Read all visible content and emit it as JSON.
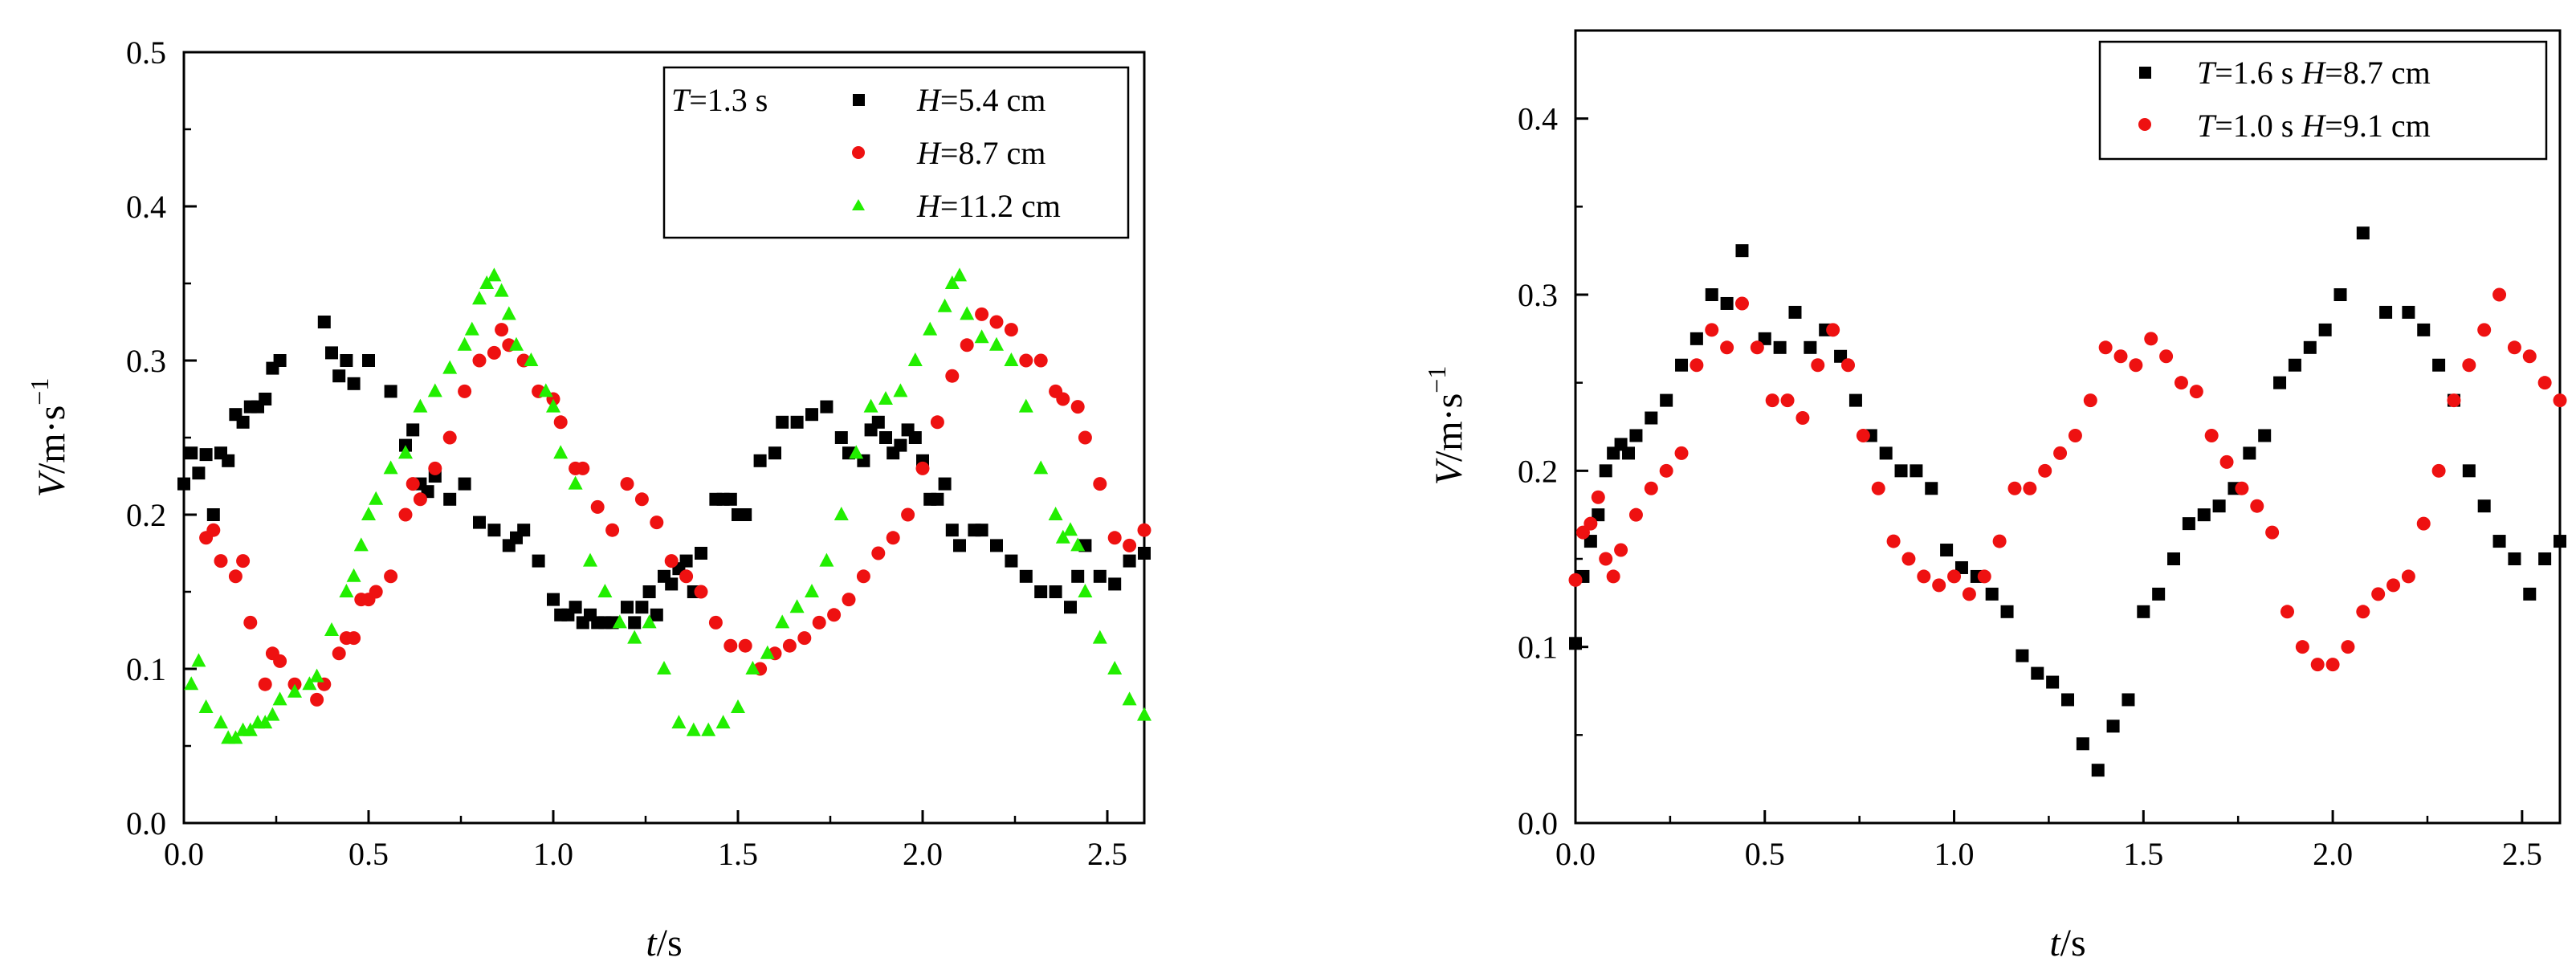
{
  "chart_data": [
    {
      "type": "scatter",
      "title": "",
      "xlabel": {
        "symbol": "t",
        "unit": "/s"
      },
      "ylabel": {
        "symbol": "V",
        "unit": "/m·s",
        "exp": "−1"
      },
      "xlim": [
        0,
        2.6
      ],
      "ylim": [
        0,
        0.5
      ],
      "xticks": [
        "0.0",
        "0.5",
        "1.0",
        "1.5",
        "2.0",
        "2.5"
      ],
      "yticks": [
        "0.0",
        "0.1",
        "0.2",
        "0.3",
        "0.4",
        "0.5"
      ],
      "legend": {
        "position": "top-right",
        "header": {
          "symbol": "T",
          "text": "=1.3 s"
        },
        "entries": [
          {
            "symbol": "H",
            "text": "=5.4 cm"
          },
          {
            "symbol": "H",
            "text": "=8.7 cm"
          },
          {
            "symbol": "H",
            "text": "=11.2 cm"
          }
        ]
      },
      "series": [
        {
          "name": "H=5.4 cm",
          "marker": "square",
          "color": "#000000",
          "x": [
            0.0,
            0.02,
            0.04,
            0.06,
            0.08,
            0.1,
            0.12,
            0.14,
            0.16,
            0.18,
            0.2,
            0.22,
            0.24,
            0.26,
            0.38,
            0.4,
            0.42,
            0.44,
            0.46,
            0.5,
            0.56,
            0.6,
            0.62,
            0.64,
            0.66,
            0.68,
            0.72,
            0.76,
            0.8,
            0.84,
            0.88,
            0.9,
            0.92,
            0.96,
            1.0,
            1.02,
            1.04,
            1.06,
            1.08,
            1.1,
            1.12,
            1.14,
            1.16,
            1.2,
            1.22,
            1.24,
            1.26,
            1.28,
            1.3,
            1.32,
            1.34,
            1.36,
            1.38,
            1.4,
            1.44,
            1.46,
            1.48,
            1.5,
            1.52,
            1.56,
            1.6,
            1.62,
            1.66,
            1.7,
            1.74,
            1.78,
            1.8,
            1.84,
            1.86,
            1.88,
            1.9,
            1.92,
            1.94,
            1.96,
            1.98,
            2.0,
            2.02,
            2.04,
            2.06,
            2.08,
            2.1,
            2.14,
            2.16,
            2.2,
            2.24,
            2.28,
            2.32,
            2.36,
            2.4,
            2.42,
            2.44,
            2.48,
            2.52,
            2.56,
            2.6
          ],
          "y": [
            0.22,
            0.24,
            0.227,
            0.239,
            0.2,
            0.24,
            0.235,
            0.265,
            0.26,
            0.27,
            0.27,
            0.275,
            0.295,
            0.3,
            0.325,
            0.305,
            0.29,
            0.3,
            0.285,
            0.3,
            0.28,
            0.245,
            0.255,
            0.22,
            0.215,
            0.225,
            0.21,
            0.22,
            0.195,
            0.19,
            0.18,
            0.185,
            0.19,
            0.17,
            0.145,
            0.135,
            0.135,
            0.14,
            0.13,
            0.135,
            0.13,
            0.13,
            0.13,
            0.14,
            0.13,
            0.14,
            0.15,
            0.135,
            0.16,
            0.155,
            0.165,
            0.17,
            0.15,
            0.175,
            0.21,
            0.21,
            0.21,
            0.2,
            0.2,
            0.235,
            0.24,
            0.26,
            0.26,
            0.265,
            0.27,
            0.25,
            0.24,
            0.235,
            0.255,
            0.26,
            0.25,
            0.24,
            0.245,
            0.255,
            0.25,
            0.235,
            0.21,
            0.21,
            0.22,
            0.19,
            0.18,
            0.19,
            0.19,
            0.18,
            0.17,
            0.16,
            0.15,
            0.15,
            0.14,
            0.16,
            0.18,
            0.16,
            0.155,
            0.17,
            0.175
          ]
        },
        {
          "name": "H=8.7 cm",
          "marker": "circle",
          "color": "#ee1111",
          "x": [
            0.06,
            0.08,
            0.1,
            0.14,
            0.16,
            0.18,
            0.22,
            0.24,
            0.26,
            0.3,
            0.36,
            0.38,
            0.42,
            0.44,
            0.46,
            0.48,
            0.5,
            0.52,
            0.56,
            0.6,
            0.62,
            0.64,
            0.68,
            0.72,
            0.76,
            0.8,
            0.84,
            0.86,
            0.88,
            0.92,
            0.96,
            1.0,
            1.02,
            1.06,
            1.08,
            1.12,
            1.16,
            1.2,
            1.24,
            1.28,
            1.32,
            1.36,
            1.4,
            1.44,
            1.48,
            1.52,
            1.56,
            1.6,
            1.64,
            1.68,
            1.72,
            1.76,
            1.8,
            1.84,
            1.88,
            1.92,
            1.96,
            2.0,
            2.04,
            2.08,
            2.12,
            2.16,
            2.2,
            2.24,
            2.28,
            2.32,
            2.36,
            2.38,
            2.42,
            2.44,
            2.48,
            2.52,
            2.56,
            2.6
          ],
          "y": [
            0.185,
            0.19,
            0.17,
            0.16,
            0.17,
            0.13,
            0.09,
            0.11,
            0.105,
            0.09,
            0.08,
            0.09,
            0.11,
            0.12,
            0.12,
            0.145,
            0.145,
            0.15,
            0.16,
            0.2,
            0.22,
            0.21,
            0.23,
            0.25,
            0.28,
            0.3,
            0.305,
            0.32,
            0.31,
            0.3,
            0.28,
            0.275,
            0.26,
            0.23,
            0.23,
            0.205,
            0.19,
            0.22,
            0.21,
            0.195,
            0.17,
            0.16,
            0.15,
            0.13,
            0.115,
            0.115,
            0.1,
            0.11,
            0.115,
            0.12,
            0.13,
            0.135,
            0.145,
            0.16,
            0.175,
            0.185,
            0.2,
            0.23,
            0.26,
            0.29,
            0.31,
            0.33,
            0.325,
            0.32,
            0.3,
            0.3,
            0.28,
            0.275,
            0.27,
            0.25,
            0.22,
            0.185,
            0.18,
            0.19
          ]
        },
        {
          "name": "H=11.2 cm",
          "marker": "triangle",
          "color": "#22ee00",
          "x": [
            0.02,
            0.04,
            0.06,
            0.1,
            0.12,
            0.14,
            0.16,
            0.18,
            0.2,
            0.22,
            0.24,
            0.26,
            0.3,
            0.34,
            0.36,
            0.4,
            0.44,
            0.46,
            0.48,
            0.5,
            0.52,
            0.56,
            0.6,
            0.64,
            0.68,
            0.72,
            0.76,
            0.78,
            0.8,
            0.82,
            0.84,
            0.86,
            0.88,
            0.9,
            0.94,
            0.98,
            1.0,
            1.02,
            1.06,
            1.1,
            1.14,
            1.18,
            1.22,
            1.26,
            1.3,
            1.34,
            1.38,
            1.42,
            1.46,
            1.5,
            1.54,
            1.58,
            1.62,
            1.66,
            1.7,
            1.74,
            1.78,
            1.82,
            1.86,
            1.9,
            1.94,
            1.98,
            2.02,
            2.06,
            2.08,
            2.1,
            2.12,
            2.16,
            2.2,
            2.24,
            2.28,
            2.32,
            2.36,
            2.38,
            2.4,
            2.42,
            2.44,
            2.48,
            2.52,
            2.56,
            2.6
          ],
          "y": [
            0.09,
            0.105,
            0.075,
            0.065,
            0.055,
            0.055,
            0.06,
            0.06,
            0.065,
            0.065,
            0.07,
            0.08,
            0.085,
            0.09,
            0.095,
            0.125,
            0.15,
            0.16,
            0.18,
            0.2,
            0.21,
            0.23,
            0.24,
            0.27,
            0.28,
            0.295,
            0.31,
            0.32,
            0.34,
            0.35,
            0.355,
            0.345,
            0.33,
            0.31,
            0.3,
            0.28,
            0.27,
            0.24,
            0.22,
            0.17,
            0.15,
            0.13,
            0.12,
            0.13,
            0.1,
            0.065,
            0.06,
            0.06,
            0.065,
            0.075,
            0.1,
            0.11,
            0.13,
            0.14,
            0.15,
            0.17,
            0.2,
            0.24,
            0.27,
            0.275,
            0.28,
            0.3,
            0.32,
            0.335,
            0.35,
            0.355,
            0.33,
            0.315,
            0.31,
            0.3,
            0.27,
            0.23,
            0.2,
            0.185,
            0.19,
            0.18,
            0.15,
            0.12,
            0.1,
            0.08,
            0.07
          ]
        }
      ]
    },
    {
      "type": "scatter",
      "title": "",
      "xlabel": {
        "symbol": "t",
        "unit": "/s"
      },
      "ylabel": {
        "symbol": "V",
        "unit": "/m·s",
        "exp": "−1"
      },
      "xlim": [
        0,
        2.6
      ],
      "ylim": [
        0,
        0.45
      ],
      "xticks": [
        "0.0",
        "0.5",
        "1.0",
        "1.5",
        "2.0",
        "2.5"
      ],
      "yticks": [
        "0.0",
        "0.1",
        "0.2",
        "0.3",
        "0.4"
      ],
      "legend": {
        "position": "top-right",
        "entries": [
          {
            "symbol1": "T",
            "text1": "=1.6 s ",
            "symbol2": "H",
            "text2": "=8.7 cm"
          },
          {
            "symbol1": "T",
            "text1": "=1.0 s ",
            "symbol2": "H",
            "text2": "=9.1 cm"
          }
        ]
      },
      "series": [
        {
          "name": "T=1.6 s H=8.7 cm",
          "marker": "square",
          "color": "#000000",
          "x": [
            0.0,
            0.02,
            0.04,
            0.06,
            0.08,
            0.1,
            0.12,
            0.14,
            0.16,
            0.2,
            0.24,
            0.28,
            0.32,
            0.36,
            0.4,
            0.44,
            0.5,
            0.54,
            0.58,
            0.62,
            0.66,
            0.7,
            0.74,
            0.78,
            0.82,
            0.86,
            0.9,
            0.94,
            0.98,
            1.02,
            1.06,
            1.1,
            1.14,
            1.18,
            1.22,
            1.26,
            1.3,
            1.34,
            1.38,
            1.42,
            1.46,
            1.5,
            1.54,
            1.58,
            1.62,
            1.66,
            1.7,
            1.74,
            1.78,
            1.82,
            1.86,
            1.9,
            1.94,
            1.98,
            2.02,
            2.08,
            2.14,
            2.2,
            2.24,
            2.28,
            2.32,
            2.36,
            2.4,
            2.44,
            2.48,
            2.52,
            2.56,
            2.6
          ],
          "y": [
            0.102,
            0.14,
            0.16,
            0.175,
            0.2,
            0.21,
            0.215,
            0.21,
            0.22,
            0.23,
            0.24,
            0.26,
            0.275,
            0.3,
            0.295,
            0.325,
            0.275,
            0.27,
            0.29,
            0.27,
            0.28,
            0.265,
            0.24,
            0.22,
            0.21,
            0.2,
            0.2,
            0.19,
            0.155,
            0.145,
            0.14,
            0.13,
            0.12,
            0.095,
            0.085,
            0.08,
            0.07,
            0.045,
            0.03,
            0.055,
            0.07,
            0.12,
            0.13,
            0.15,
            0.17,
            0.175,
            0.18,
            0.19,
            0.21,
            0.22,
            0.25,
            0.26,
            0.27,
            0.28,
            0.3,
            0.335,
            0.29,
            0.29,
            0.28,
            0.26,
            0.24,
            0.2,
            0.18,
            0.16,
            0.15,
            0.13,
            0.15,
            0.16
          ]
        },
        {
          "name": "T=1.0 s H=9.1 cm",
          "marker": "circle",
          "color": "#ee1111",
          "x": [
            0.0,
            0.02,
            0.04,
            0.06,
            0.08,
            0.1,
            0.12,
            0.16,
            0.2,
            0.24,
            0.28,
            0.32,
            0.36,
            0.4,
            0.44,
            0.48,
            0.52,
            0.56,
            0.6,
            0.64,
            0.68,
            0.72,
            0.76,
            0.8,
            0.84,
            0.88,
            0.92,
            0.96,
            1.0,
            1.04,
            1.08,
            1.12,
            1.16,
            1.2,
            1.24,
            1.28,
            1.32,
            1.36,
            1.4,
            1.44,
            1.48,
            1.52,
            1.56,
            1.6,
            1.64,
            1.68,
            1.72,
            1.76,
            1.8,
            1.84,
            1.88,
            1.92,
            1.96,
            2.0,
            2.04,
            2.08,
            2.12,
            2.16,
            2.2,
            2.24,
            2.28,
            2.32,
            2.36,
            2.4,
            2.44,
            2.48,
            2.52,
            2.56,
            2.6
          ],
          "y": [
            0.138,
            0.165,
            0.17,
            0.185,
            0.15,
            0.14,
            0.155,
            0.175,
            0.19,
            0.2,
            0.21,
            0.26,
            0.28,
            0.27,
            0.295,
            0.27,
            0.24,
            0.24,
            0.23,
            0.26,
            0.28,
            0.26,
            0.22,
            0.19,
            0.16,
            0.15,
            0.14,
            0.135,
            0.14,
            0.13,
            0.14,
            0.16,
            0.19,
            0.19,
            0.2,
            0.21,
            0.22,
            0.24,
            0.27,
            0.265,
            0.26,
            0.275,
            0.265,
            0.25,
            0.245,
            0.22,
            0.205,
            0.19,
            0.18,
            0.165,
            0.12,
            0.1,
            0.09,
            0.09,
            0.1,
            0.12,
            0.13,
            0.135,
            0.14,
            0.17,
            0.2,
            0.24,
            0.26,
            0.28,
            0.3,
            0.27,
            0.265,
            0.25,
            0.24
          ]
        }
      ]
    }
  ]
}
